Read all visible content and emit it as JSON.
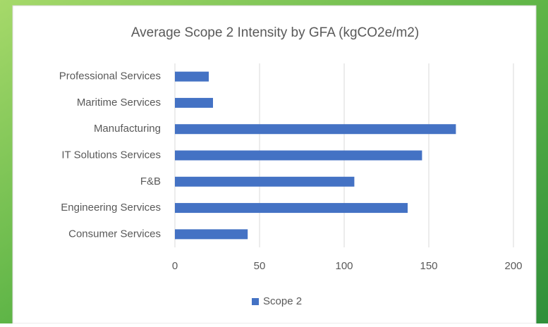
{
  "chart_data": {
    "type": "barh",
    "title": "Average Scope 2 Intensity by GFA (kgCO2e/m2)",
    "categories": [
      "Professional Services",
      "Maritime Services",
      "Manufacturing",
      "IT Solutions Services",
      "F&B",
      "Engineering Services",
      "Consumer Services"
    ],
    "series": [
      {
        "name": "Scope 2",
        "color": "#4472c4",
        "values": [
          20,
          22.5,
          166,
          146,
          106,
          137.5,
          43
        ]
      }
    ],
    "xlim": [
      0,
      200
    ],
    "xticks": [
      0,
      50,
      100,
      150,
      200
    ],
    "grid": true,
    "legend": "bottom"
  }
}
